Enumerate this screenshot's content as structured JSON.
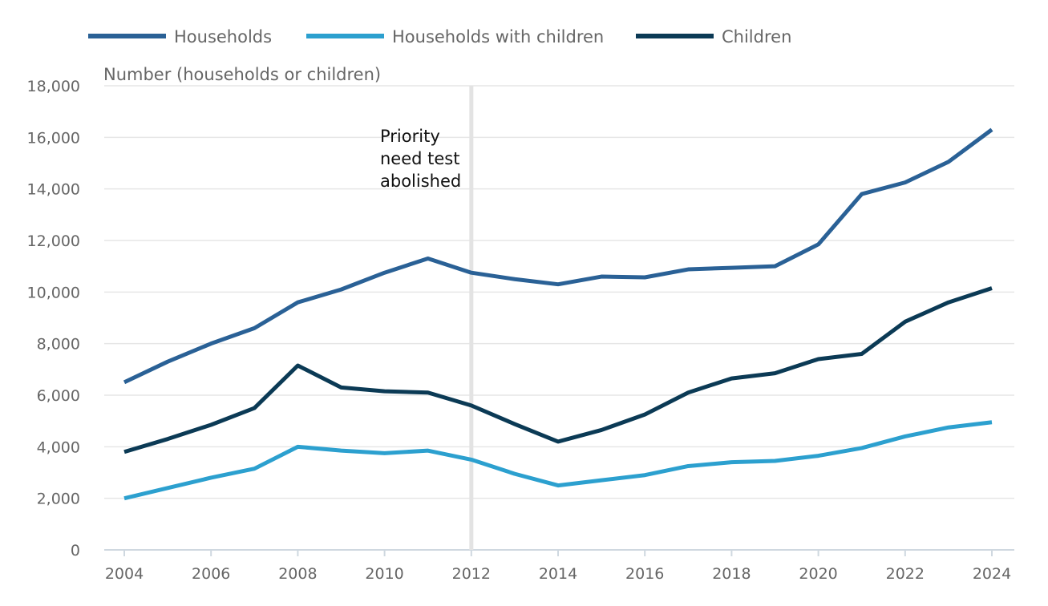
{
  "chart_data": {
    "type": "line",
    "ylabel": "Number (households or children)",
    "ylim": [
      0,
      18000
    ],
    "yticks": [
      0,
      2000,
      4000,
      6000,
      8000,
      10000,
      12000,
      14000,
      16000,
      18000
    ],
    "ytick_labels": [
      "0",
      "2,000",
      "4,000",
      "6,000",
      "8,000",
      "10,000",
      "12,000",
      "14,000",
      "16,000",
      "18,000"
    ],
    "xlim": [
      2004,
      2024
    ],
    "xticks": [
      2004,
      2006,
      2008,
      2010,
      2012,
      2014,
      2016,
      2018,
      2020,
      2022,
      2024
    ],
    "xtick_labels": [
      "2004",
      "2006",
      "2008",
      "2010",
      "2012",
      "2014",
      "2016",
      "2018",
      "2020",
      "2022",
      "2024"
    ],
    "grid": true,
    "legend_position": "top",
    "x": [
      2004,
      2005,
      2006,
      2007,
      2008,
      2009,
      2010,
      2011,
      2012,
      2013,
      2014,
      2015,
      2016,
      2017,
      2018,
      2019,
      2020,
      2021,
      2022,
      2023,
      2024
    ],
    "series": [
      {
        "name": "Households",
        "color": "#2a6196",
        "values": [
          6500,
          7300,
          8000,
          8600,
          9600,
          10100,
          10750,
          11300,
          10750,
          10500,
          10300,
          10600,
          10570,
          10880,
          10940,
          11000,
          11850,
          13800,
          14250,
          15050,
          16300
        ]
      },
      {
        "name": "Households with children",
        "color": "#2ca0cf",
        "values": [
          2000,
          2400,
          2800,
          3150,
          4000,
          3850,
          3750,
          3850,
          3500,
          2950,
          2500,
          2700,
          2900,
          3250,
          3400,
          3450,
          3650,
          3950,
          4400,
          4750,
          4950
        ]
      },
      {
        "name": "Children",
        "color": "#0b3a55",
        "values": [
          3800,
          4300,
          4850,
          5500,
          7150,
          6300,
          6150,
          6100,
          5600,
          4880,
          4200,
          4650,
          5250,
          6100,
          6650,
          6850,
          7400,
          7600,
          8850,
          9600,
          10150
        ]
      }
    ],
    "annotations": [
      {
        "x": 2012,
        "lines": [
          "Priority",
          "need test",
          "abolished"
        ],
        "line_color": "#e3e3e3"
      }
    ]
  }
}
